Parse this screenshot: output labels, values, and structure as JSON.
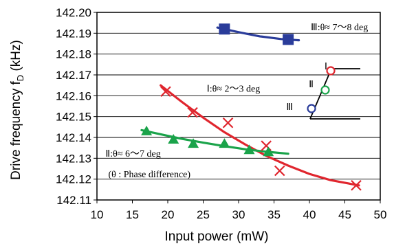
{
  "chart_data": {
    "type": "scatter",
    "xlabel": "Input power (mW)",
    "ylabel": "Drive frequency  f",
    "ylabel_sub": "D",
    "ylabel_unit": " (kHz)",
    "xlim": [
      10,
      50
    ],
    "ylim": [
      142.11,
      142.2
    ],
    "x_ticks": [
      "10",
      "15",
      "20",
      "25",
      "30",
      "35",
      "40",
      "45",
      "50"
    ],
    "y_ticks": [
      "142.11",
      "142.12",
      "142.13",
      "142.14",
      "142.15",
      "142.16",
      "142.17",
      "142.18",
      "142.19",
      "142.20"
    ],
    "grid": "horizontal",
    "series": [
      {
        "marker": "square",
        "color": "#2a3c9a",
        "points": [
          {
            "x": 28,
            "y": 142.192
          },
          {
            "x": 37,
            "y": 142.187
          }
        ],
        "fit": [
          {
            "x": 27,
            "y": 142.1927
          },
          {
            "x": 30,
            "y": 142.1905
          },
          {
            "x": 33,
            "y": 142.1885
          },
          {
            "x": 36,
            "y": 142.1872
          },
          {
            "x": 38.5,
            "y": 142.1866
          }
        ]
      },
      {
        "marker": "cross",
        "color": "#e0262e",
        "points": [
          {
            "x": 19.7,
            "y": 142.162
          },
          {
            "x": 23.5,
            "y": 142.152
          },
          {
            "x": 28.5,
            "y": 142.147
          },
          {
            "x": 33.9,
            "y": 142.136
          },
          {
            "x": 35.8,
            "y": 142.124
          },
          {
            "x": 46.6,
            "y": 142.117
          }
        ],
        "fit": [
          {
            "x": 19,
            "y": 142.165
          },
          {
            "x": 22,
            "y": 142.157
          },
          {
            "x": 25,
            "y": 142.1495
          },
          {
            "x": 28,
            "y": 142.1425
          },
          {
            "x": 31,
            "y": 142.1365
          },
          {
            "x": 34,
            "y": 142.131
          },
          {
            "x": 37,
            "y": 142.1265
          },
          {
            "x": 40,
            "y": 142.1225
          },
          {
            "x": 43,
            "y": 142.1195
          },
          {
            "x": 47,
            "y": 142.117
          }
        ]
      },
      {
        "marker": "triangle",
        "color": "#1aa34a",
        "points": [
          {
            "x": 17,
            "y": 142.143
          },
          {
            "x": 20.8,
            "y": 142.139
          },
          {
            "x": 23.6,
            "y": 142.137
          },
          {
            "x": 28,
            "y": 142.137
          },
          {
            "x": 31.5,
            "y": 142.134
          },
          {
            "x": 34.2,
            "y": 142.133
          }
        ],
        "fit": [
          {
            "x": 16.3,
            "y": 142.1435
          },
          {
            "x": 19,
            "y": 142.1415
          },
          {
            "x": 22,
            "y": 142.1393
          },
          {
            "x": 25,
            "y": 142.1375
          },
          {
            "x": 28,
            "y": 142.1358
          },
          {
            "x": 31,
            "y": 142.1343
          },
          {
            "x": 34,
            "y": 142.1331
          },
          {
            "x": 37,
            "y": 142.1322
          }
        ]
      }
    ],
    "annotations": [
      {
        "text": "Ⅲ:θ≈ 7～8 deg",
        "x": 40.2,
        "y": 142.193
      },
      {
        "text": "Ⅰ:θ≈ 2～3 deg",
        "x": 25.5,
        "y": 142.1635
      },
      {
        "text": "Ⅱ:θ≈ 6～7 deg",
        "x": 11.2,
        "y": 142.1325
      },
      {
        "text": "(θ : Phase difference)",
        "x": 11.6,
        "y": 142.1225
      }
    ],
    "inset": {
      "labels": [
        "Ⅰ",
        "Ⅱ",
        "Ⅲ"
      ],
      "colors": [
        "#e0262e",
        "#1aa34a",
        "#2a3c9a"
      ]
    }
  }
}
